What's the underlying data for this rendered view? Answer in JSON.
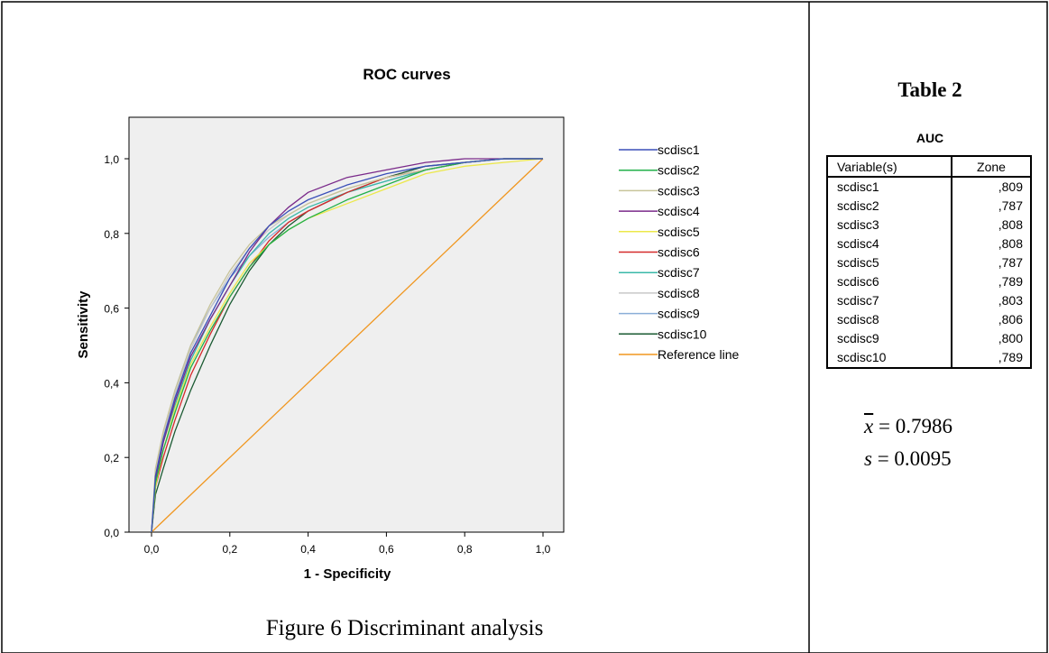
{
  "caption": "Figure 6  Discriminant analysis",
  "table": {
    "title": "Table 2",
    "subtitle": "AUC",
    "headers": [
      "Variable(s)",
      "Zone"
    ],
    "rows": [
      [
        "scdisc1",
        ",809"
      ],
      [
        "scdisc2",
        ",787"
      ],
      [
        "scdisc3",
        ",808"
      ],
      [
        "scdisc4",
        ",808"
      ],
      [
        "scdisc5",
        ",787"
      ],
      [
        "scdisc6",
        ",789"
      ],
      [
        "scdisc7",
        ",803"
      ],
      [
        "scdisc8",
        ",806"
      ],
      [
        "scdisc9",
        ",800"
      ],
      [
        "scdisc10",
        ",789"
      ]
    ]
  },
  "stats": {
    "mean_symbol": "x",
    "mean_value": "= 0.7986",
    "sd_symbol": "s",
    "sd_value": "= 0.0095"
  },
  "chart_data": {
    "type": "line",
    "title": "ROC curves",
    "xlabel": "1 - Specificity",
    "ylabel": "Sensitivity",
    "xlim": [
      -0.05,
      1.05
    ],
    "ylim": [
      0,
      1.1
    ],
    "xticks": [
      "0,0",
      "0,2",
      "0,4",
      "0,6",
      "0,8",
      "1,0"
    ],
    "xtick_values": [
      0,
      0.2,
      0.4,
      0.6,
      0.8,
      1.0
    ],
    "yticks": [
      "0,0",
      "0,2",
      "0,4",
      "0,6",
      "0,8",
      "1,0"
    ],
    "ytick_values": [
      0,
      0.2,
      0.4,
      0.6,
      0.8,
      1.0
    ],
    "legend_position": "right",
    "background": "#efefef",
    "series": [
      {
        "name": "scdisc1",
        "color": "#3a4fb8",
        "x": [
          0,
          0.01,
          0.03,
          0.06,
          0.1,
          0.15,
          0.2,
          0.25,
          0.3,
          0.35,
          0.4,
          0.5,
          0.6,
          0.7,
          0.8,
          0.9,
          1.0
        ],
        "y": [
          0,
          0.15,
          0.25,
          0.36,
          0.48,
          0.58,
          0.68,
          0.76,
          0.82,
          0.86,
          0.89,
          0.93,
          0.96,
          0.98,
          0.99,
          1.0,
          1.0
        ]
      },
      {
        "name": "scdisc2",
        "color": "#22b04a",
        "x": [
          0,
          0.01,
          0.03,
          0.06,
          0.1,
          0.15,
          0.2,
          0.25,
          0.3,
          0.35,
          0.4,
          0.5,
          0.6,
          0.7,
          0.8,
          0.9,
          1.0
        ],
        "y": [
          0,
          0.13,
          0.22,
          0.32,
          0.44,
          0.54,
          0.63,
          0.71,
          0.77,
          0.81,
          0.84,
          0.89,
          0.93,
          0.97,
          0.99,
          1.0,
          1.0
        ]
      },
      {
        "name": "scdisc3",
        "color": "#c8c49a",
        "x": [
          0,
          0.01,
          0.03,
          0.06,
          0.1,
          0.15,
          0.2,
          0.25,
          0.3,
          0.35,
          0.4,
          0.5,
          0.6,
          0.7,
          0.8,
          0.9,
          1.0
        ],
        "y": [
          0,
          0.17,
          0.27,
          0.38,
          0.5,
          0.61,
          0.7,
          0.77,
          0.82,
          0.85,
          0.88,
          0.92,
          0.95,
          0.97,
          0.99,
          1.0,
          1.0
        ]
      },
      {
        "name": "scdisc4",
        "color": "#7a2a8a",
        "x": [
          0,
          0.01,
          0.03,
          0.06,
          0.1,
          0.15,
          0.2,
          0.25,
          0.3,
          0.35,
          0.4,
          0.5,
          0.6,
          0.7,
          0.8,
          0.9,
          1.0
        ],
        "y": [
          0,
          0.14,
          0.24,
          0.35,
          0.47,
          0.57,
          0.66,
          0.75,
          0.82,
          0.87,
          0.91,
          0.95,
          0.97,
          0.99,
          1.0,
          1.0,
          1.0
        ]
      },
      {
        "name": "scdisc5",
        "color": "#ece84a",
        "x": [
          0,
          0.01,
          0.03,
          0.06,
          0.1,
          0.15,
          0.2,
          0.25,
          0.3,
          0.35,
          0.4,
          0.5,
          0.6,
          0.7,
          0.8,
          0.9,
          1.0
        ],
        "y": [
          0,
          0.12,
          0.22,
          0.33,
          0.45,
          0.55,
          0.64,
          0.72,
          0.77,
          0.81,
          0.84,
          0.88,
          0.92,
          0.96,
          0.98,
          0.99,
          1.0
        ]
      },
      {
        "name": "scdisc6",
        "color": "#d42a2a",
        "x": [
          0,
          0.01,
          0.03,
          0.06,
          0.1,
          0.15,
          0.2,
          0.25,
          0.3,
          0.35,
          0.4,
          0.5,
          0.6,
          0.7,
          0.8,
          0.9,
          1.0
        ],
        "y": [
          0,
          0.12,
          0.2,
          0.3,
          0.42,
          0.53,
          0.63,
          0.71,
          0.78,
          0.83,
          0.86,
          0.91,
          0.95,
          0.97,
          0.99,
          1.0,
          1.0
        ]
      },
      {
        "name": "scdisc7",
        "color": "#3ab8a8",
        "x": [
          0,
          0.01,
          0.03,
          0.06,
          0.1,
          0.15,
          0.2,
          0.25,
          0.3,
          0.35,
          0.4,
          0.5,
          0.6,
          0.7,
          0.8,
          0.9,
          1.0
        ],
        "y": [
          0,
          0.14,
          0.24,
          0.34,
          0.46,
          0.57,
          0.66,
          0.74,
          0.8,
          0.84,
          0.87,
          0.91,
          0.94,
          0.97,
          0.99,
          1.0,
          1.0
        ]
      },
      {
        "name": "scdisc8",
        "color": "#c8c8c8",
        "x": [
          0,
          0.01,
          0.03,
          0.06,
          0.1,
          0.15,
          0.2,
          0.25,
          0.3,
          0.35,
          0.4,
          0.5,
          0.6,
          0.7,
          0.8,
          0.9,
          1.0
        ],
        "y": [
          0,
          0.16,
          0.26,
          0.37,
          0.49,
          0.6,
          0.69,
          0.76,
          0.81,
          0.85,
          0.88,
          0.92,
          0.95,
          0.97,
          0.99,
          1.0,
          1.0
        ]
      },
      {
        "name": "scdisc9",
        "color": "#8aaed8",
        "x": [
          0,
          0.01,
          0.03,
          0.06,
          0.1,
          0.15,
          0.2,
          0.25,
          0.3,
          0.35,
          0.4,
          0.5,
          0.6,
          0.7,
          0.8,
          0.9,
          1.0
        ],
        "y": [
          0,
          0.15,
          0.26,
          0.38,
          0.5,
          0.6,
          0.68,
          0.74,
          0.79,
          0.83,
          0.86,
          0.91,
          0.94,
          0.97,
          0.99,
          1.0,
          1.0
        ]
      },
      {
        "name": "scdisc10",
        "color": "#1a5a32",
        "x": [
          0,
          0.01,
          0.03,
          0.06,
          0.1,
          0.15,
          0.2,
          0.25,
          0.3,
          0.35,
          0.4,
          0.5,
          0.6,
          0.7,
          0.8,
          0.9,
          1.0
        ],
        "y": [
          0,
          0.1,
          0.17,
          0.27,
          0.38,
          0.5,
          0.61,
          0.7,
          0.77,
          0.82,
          0.86,
          0.91,
          0.95,
          0.98,
          0.99,
          1.0,
          1.0
        ]
      },
      {
        "name": "Reference line",
        "color": "#f0961e",
        "x": [
          0,
          1
        ],
        "y": [
          0,
          1
        ]
      }
    ]
  }
}
